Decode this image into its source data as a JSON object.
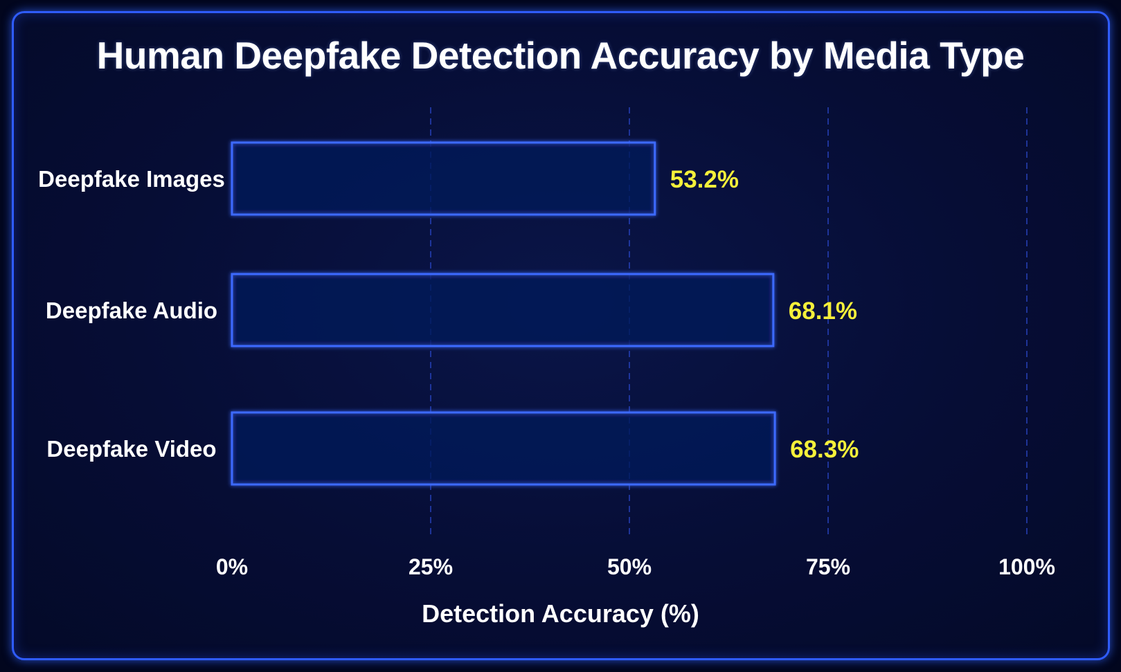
{
  "chart_data": {
    "type": "bar",
    "orientation": "horizontal",
    "title": "Human Deepfake Detection Accuracy by Media Type",
    "xlabel": "Detection Accuracy (%)",
    "ylabel": "",
    "categories": [
      "Deepfake Images",
      "Deepfake Audio",
      "Deepfake Video"
    ],
    "values": [
      53.2,
      68.1,
      68.3
    ],
    "data_labels": [
      "53.2%",
      "68.1%",
      "68.3%"
    ],
    "xlim": [
      0,
      100
    ],
    "xticks": [
      0,
      25,
      50,
      75,
      100
    ],
    "xtick_labels": [
      "0%",
      "25%",
      "50%",
      "75%",
      "100%"
    ],
    "grid": "vertical dashed",
    "legend": "none",
    "colors": {
      "bar_outline": "#3d6bff",
      "bar_fill": "#0a165a",
      "axis": "#3d6bff",
      "grid": "#2a47c8",
      "value_label": "#f5f03a",
      "text": "#ffffff",
      "background": "#060d35"
    }
  }
}
